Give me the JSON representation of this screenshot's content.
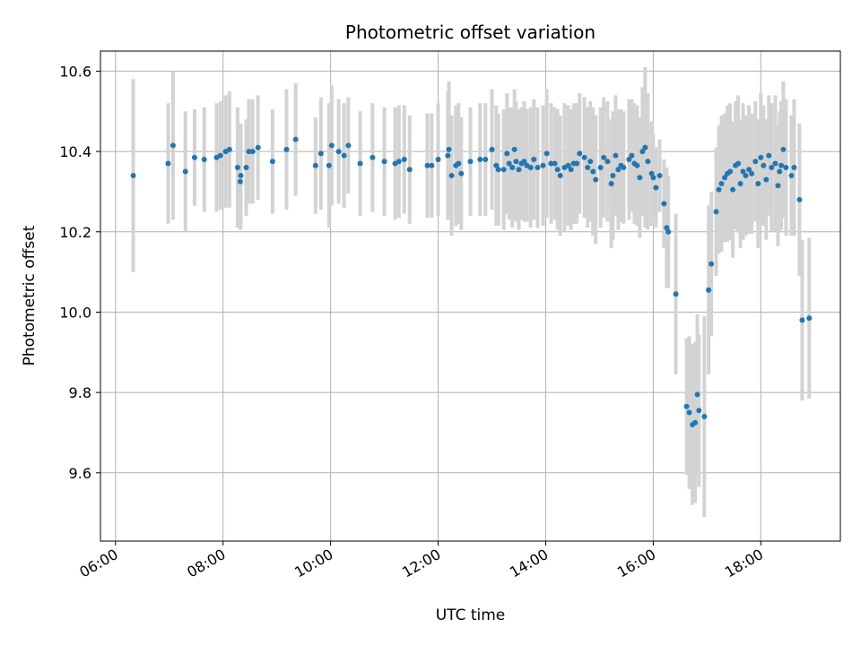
{
  "chart_data": {
    "type": "scatter",
    "title": "Photometric offset variation",
    "xlabel": "UTC time",
    "ylabel": "Photometric offset",
    "x_tick_labels": [
      "06:00",
      "08:00",
      "10:00",
      "12:00",
      "14:00",
      "16:00",
      "18:00"
    ],
    "x_tick_hours": [
      6,
      8,
      10,
      12,
      14,
      16,
      18
    ],
    "y_ticks": [
      9.6,
      9.8,
      10.0,
      10.2,
      10.4,
      10.6
    ],
    "y_tick_labels": [
      "9.6",
      "9.8",
      "10.0",
      "10.2",
      "10.4",
      "10.6"
    ],
    "xlim_hours": [
      5.72,
      19.48
    ],
    "ylim": [
      9.43,
      10.65
    ],
    "grid": true,
    "point_color": "#1f77b4",
    "errorbar_color": "#d3d3d3",
    "points": [
      [
        6.33,
        10.34,
        0.24
      ],
      [
        6.98,
        10.37,
        0.15
      ],
      [
        7.07,
        10.415,
        0.185
      ],
      [
        7.3,
        10.35,
        0.15
      ],
      [
        7.47,
        10.385,
        0.12
      ],
      [
        7.65,
        10.38,
        0.13
      ],
      [
        7.88,
        10.385,
        0.135
      ],
      [
        7.95,
        10.39,
        0.135
      ],
      [
        8.05,
        10.4,
        0.14
      ],
      [
        8.12,
        10.405,
        0.145
      ],
      [
        8.27,
        10.36,
        0.15
      ],
      [
        8.32,
        10.325,
        0.12
      ],
      [
        8.33,
        10.34,
        0.13
      ],
      [
        8.43,
        10.36,
        0.12
      ],
      [
        8.48,
        10.4,
        0.13
      ],
      [
        8.55,
        10.4,
        0.13
      ],
      [
        8.65,
        10.41,
        0.13
      ],
      [
        8.92,
        10.375,
        0.13
      ],
      [
        9.18,
        10.405,
        0.15
      ],
      [
        9.35,
        10.43,
        0.14
      ],
      [
        9.72,
        10.365,
        0.12
      ],
      [
        9.82,
        10.395,
        0.14
      ],
      [
        9.97,
        10.365,
        0.155
      ],
      [
        10.02,
        10.415,
        0.15
      ],
      [
        10.15,
        10.4,
        0.13
      ],
      [
        10.25,
        10.39,
        0.13
      ],
      [
        10.33,
        10.415,
        0.12
      ],
      [
        10.55,
        10.37,
        0.13
      ],
      [
        10.78,
        10.385,
        0.135
      ],
      [
        11.0,
        10.375,
        0.135
      ],
      [
        11.2,
        10.37,
        0.14
      ],
      [
        11.27,
        10.375,
        0.14
      ],
      [
        11.37,
        10.38,
        0.135
      ],
      [
        11.47,
        10.355,
        0.135
      ],
      [
        11.8,
        10.365,
        0.13
      ],
      [
        11.88,
        10.365,
        0.13
      ],
      [
        12.0,
        10.38,
        0.14
      ],
      [
        12.18,
        10.39,
        0.16
      ],
      [
        12.2,
        10.405,
        0.17
      ],
      [
        12.25,
        10.34,
        0.15
      ],
      [
        12.33,
        10.365,
        0.15
      ],
      [
        12.38,
        10.37,
        0.15
      ],
      [
        12.43,
        10.345,
        0.14
      ],
      [
        12.6,
        10.375,
        0.135
      ],
      [
        12.78,
        10.38,
        0.14
      ],
      [
        12.88,
        10.38,
        0.14
      ],
      [
        13.0,
        10.405,
        0.15
      ],
      [
        13.08,
        10.365,
        0.15
      ],
      [
        13.12,
        10.355,
        0.14
      ],
      [
        13.22,
        10.355,
        0.15
      ],
      [
        13.28,
        10.395,
        0.15
      ],
      [
        13.32,
        10.37,
        0.14
      ],
      [
        13.38,
        10.36,
        0.15
      ],
      [
        13.42,
        10.405,
        0.15
      ],
      [
        13.45,
        10.375,
        0.15
      ],
      [
        13.5,
        10.355,
        0.15
      ],
      [
        13.55,
        10.37,
        0.14
      ],
      [
        13.6,
        10.375,
        0.15
      ],
      [
        13.65,
        10.365,
        0.14
      ],
      [
        13.72,
        10.36,
        0.15
      ],
      [
        13.78,
        10.38,
        0.15
      ],
      [
        13.85,
        10.36,
        0.15
      ],
      [
        13.95,
        10.365,
        0.15
      ],
      [
        14.02,
        10.395,
        0.16
      ],
      [
        14.1,
        10.37,
        0.15
      ],
      [
        14.17,
        10.37,
        0.14
      ],
      [
        14.22,
        10.355,
        0.15
      ],
      [
        14.27,
        10.34,
        0.15
      ],
      [
        14.35,
        10.36,
        0.16
      ],
      [
        14.42,
        10.365,
        0.15
      ],
      [
        14.47,
        10.355,
        0.15
      ],
      [
        14.52,
        10.37,
        0.15
      ],
      [
        14.58,
        10.37,
        0.15
      ],
      [
        14.63,
        10.395,
        0.15
      ],
      [
        14.72,
        10.385,
        0.15
      ],
      [
        14.78,
        10.36,
        0.15
      ],
      [
        14.83,
        10.375,
        0.15
      ],
      [
        14.88,
        10.35,
        0.16
      ],
      [
        14.93,
        10.33,
        0.16
      ],
      [
        15.02,
        10.36,
        0.15
      ],
      [
        15.08,
        10.385,
        0.15
      ],
      [
        15.15,
        10.375,
        0.15
      ],
      [
        15.22,
        10.32,
        0.16
      ],
      [
        15.25,
        10.34,
        0.16
      ],
      [
        15.3,
        10.39,
        0.15
      ],
      [
        15.35,
        10.355,
        0.15
      ],
      [
        15.4,
        10.365,
        0.14
      ],
      [
        15.45,
        10.36,
        0.14
      ],
      [
        15.55,
        10.38,
        0.15
      ],
      [
        15.6,
        10.39,
        0.14
      ],
      [
        15.65,
        10.37,
        0.15
      ],
      [
        15.7,
        10.365,
        0.15
      ],
      [
        15.75,
        10.335,
        0.15
      ],
      [
        15.8,
        10.4,
        0.16
      ],
      [
        15.85,
        10.41,
        0.2
      ],
      [
        15.9,
        10.375,
        0.17
      ],
      [
        15.97,
        10.345,
        0.13
      ],
      [
        16.0,
        10.335,
        0.11
      ],
      [
        16.05,
        10.31,
        0.1
      ],
      [
        16.12,
        10.34,
        0.09
      ],
      [
        16.2,
        10.27,
        0.11
      ],
      [
        16.25,
        10.21,
        0.15
      ],
      [
        16.28,
        10.2,
        0.14
      ],
      [
        16.42,
        10.045,
        0.2
      ],
      [
        16.62,
        9.765,
        0.17
      ],
      [
        16.67,
        9.75,
        0.19
      ],
      [
        16.73,
        9.72,
        0.2
      ],
      [
        16.78,
        9.725,
        0.2
      ],
      [
        16.82,
        9.795,
        0.2
      ],
      [
        16.85,
        9.755,
        0.19
      ],
      [
        16.95,
        9.74,
        0.25
      ],
      [
        17.03,
        10.055,
        0.21
      ],
      [
        17.08,
        10.12,
        0.18
      ],
      [
        17.17,
        10.25,
        0.16
      ],
      [
        17.22,
        10.305,
        0.16
      ],
      [
        17.27,
        10.32,
        0.17
      ],
      [
        17.33,
        10.335,
        0.16
      ],
      [
        17.38,
        10.345,
        0.17
      ],
      [
        17.43,
        10.35,
        0.17
      ],
      [
        17.48,
        10.305,
        0.17
      ],
      [
        17.53,
        10.365,
        0.16
      ],
      [
        17.58,
        10.37,
        0.17
      ],
      [
        17.62,
        10.32,
        0.16
      ],
      [
        17.67,
        10.35,
        0.17
      ],
      [
        17.72,
        10.34,
        0.15
      ],
      [
        17.78,
        10.355,
        0.16
      ],
      [
        17.83,
        10.345,
        0.15
      ],
      [
        17.9,
        10.375,
        0.15
      ],
      [
        17.95,
        10.32,
        0.16
      ],
      [
        18.0,
        10.385,
        0.16
      ],
      [
        18.05,
        10.365,
        0.15
      ],
      [
        18.1,
        10.33,
        0.15
      ],
      [
        18.15,
        10.39,
        0.15
      ],
      [
        18.2,
        10.36,
        0.16
      ],
      [
        18.27,
        10.37,
        0.17
      ],
      [
        18.32,
        10.315,
        0.15
      ],
      [
        18.35,
        10.35,
        0.15
      ],
      [
        18.38,
        10.365,
        0.16
      ],
      [
        18.42,
        10.405,
        0.17
      ],
      [
        18.47,
        10.36,
        0.17
      ],
      [
        18.57,
        10.34,
        0.15
      ],
      [
        18.62,
        10.36,
        0.17
      ],
      [
        18.72,
        10.28,
        0.19
      ],
      [
        18.77,
        9.98,
        0.2
      ],
      [
        18.9,
        9.985,
        0.2
      ]
    ]
  }
}
